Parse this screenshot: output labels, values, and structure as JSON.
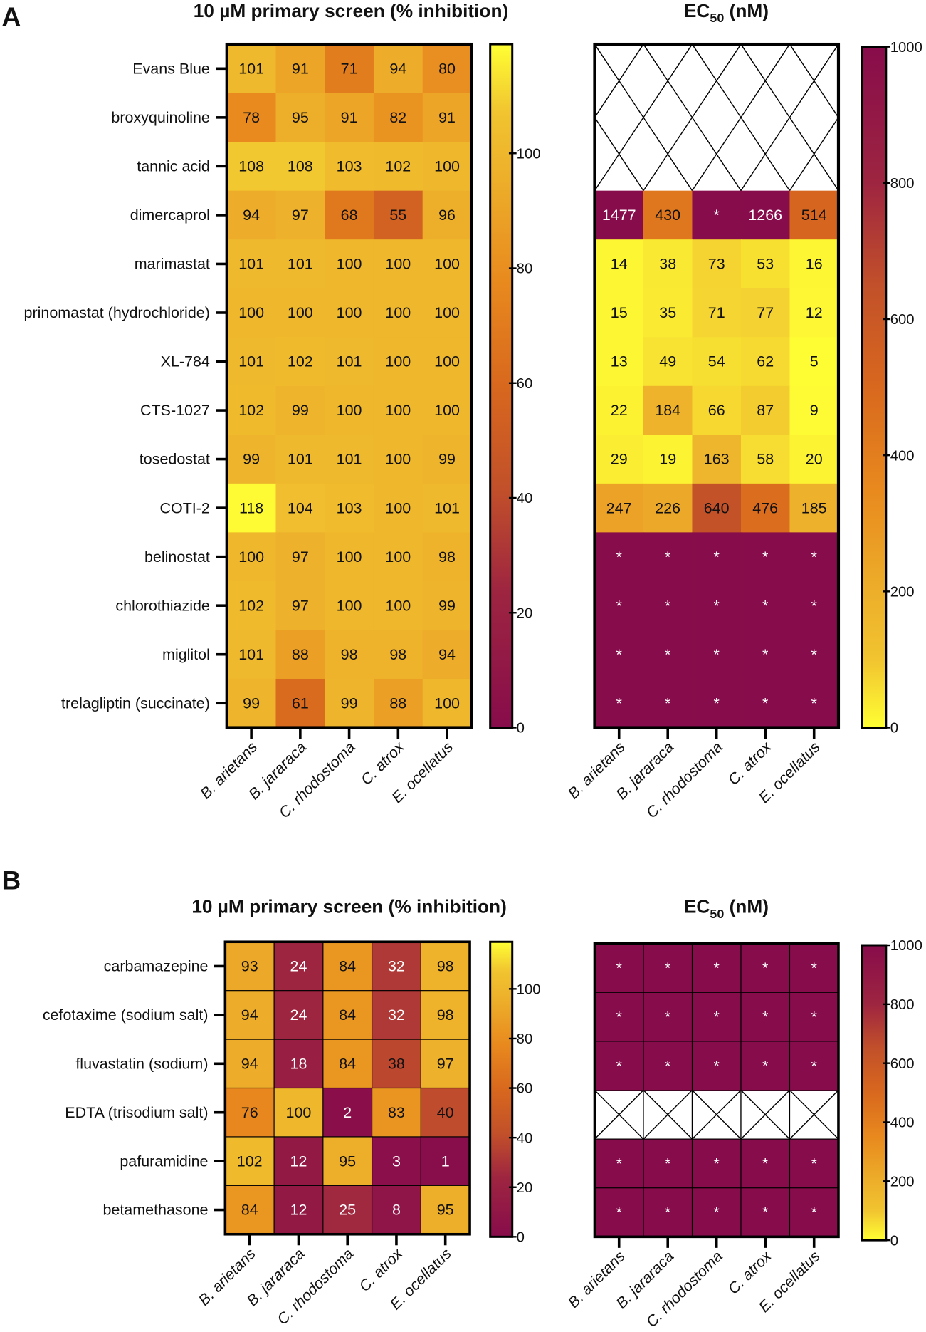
{
  "colors": {
    "low": "#870C4B",
    "high": "#FFFF33",
    "hatch_bg": "#FFFFFF",
    "frame": "#000000"
  },
  "chart_data": [
    {
      "panel": "A",
      "type": "heatmap",
      "title": "10 µM primary screen (% inhibition)",
      "rows": [
        "Evans Blue",
        "broxyquinoline",
        "tannic acid",
        "dimercaprol",
        "marimastat",
        "prinomastat (hydrochloride)",
        "XL-784",
        "CTS-1027",
        "tosedostat",
        "COTI-2",
        "belinostat",
        "chlorothiazide",
        "miglitol",
        "trelagliptin (succinate)"
      ],
      "columns": [
        "B. arietans",
        "B. jararaca",
        "C. rhodostoma",
        "C. atrox",
        "E. ocellatus"
      ],
      "values": [
        [
          101,
          91,
          71,
          94,
          80
        ],
        [
          78,
          95,
          91,
          82,
          91
        ],
        [
          108,
          108,
          103,
          102,
          100
        ],
        [
          94,
          97,
          68,
          55,
          96
        ],
        [
          101,
          101,
          100,
          100,
          100
        ],
        [
          100,
          100,
          100,
          100,
          100
        ],
        [
          101,
          102,
          101,
          100,
          100
        ],
        [
          102,
          99,
          100,
          100,
          100
        ],
        [
          99,
          101,
          101,
          100,
          99
        ],
        [
          118,
          104,
          103,
          100,
          101
        ],
        [
          100,
          97,
          100,
          100,
          98
        ],
        [
          102,
          97,
          100,
          100,
          99
        ],
        [
          101,
          88,
          98,
          98,
          94
        ],
        [
          99,
          61,
          99,
          88,
          100
        ]
      ],
      "colorbar": {
        "range": [
          0,
          119
        ],
        "ticks": [
          0,
          20,
          40,
          60,
          80,
          100
        ],
        "direction": "high-is-yellow"
      }
    },
    {
      "panel": "A",
      "type": "heatmap",
      "title_main": "EC",
      "title_sub": "50",
      "title_unit": " (nM)",
      "rows": [
        "Evans Blue",
        "broxyquinoline",
        "tannic acid",
        "dimercaprol",
        "marimastat",
        "prinomastat (hydrochloride)",
        "XL-784",
        "CTS-1027",
        "tosedostat",
        "COTI-2",
        "belinostat",
        "chlorothiazide",
        "miglitol",
        "trelagliptin (succinate)"
      ],
      "columns": [
        "B. arietans",
        "B. jararaca",
        "C. rhodostoma",
        "C. atrox",
        "E. ocellatus"
      ],
      "values": [
        [
          null,
          null,
          null,
          null,
          null
        ],
        [
          null,
          null,
          null,
          null,
          null
        ],
        [
          null,
          null,
          null,
          null,
          null
        ],
        [
          "1477",
          "430",
          "*",
          "1266",
          "514"
        ],
        [
          "14",
          "38",
          "73",
          "53",
          "16"
        ],
        [
          "15",
          "35",
          "71",
          "77",
          "12"
        ],
        [
          "13",
          "49",
          "54",
          "62",
          "5"
        ],
        [
          "22",
          "184",
          "66",
          "87",
          "9"
        ],
        [
          "29",
          "19",
          "163",
          "58",
          "20"
        ],
        [
          "247",
          "226",
          "640",
          "476",
          "185"
        ],
        [
          "*",
          "*",
          "*",
          "*",
          "*"
        ],
        [
          "*",
          "*",
          "*",
          "*",
          "*"
        ],
        [
          "*",
          "*",
          "*",
          "*",
          "*"
        ],
        [
          "*",
          "*",
          "*",
          "*",
          "*"
        ]
      ],
      "colorbar": {
        "range": [
          0,
          1000
        ],
        "ticks": [
          0,
          200,
          400,
          600,
          800,
          1000
        ],
        "direction": "high-is-magenta"
      }
    },
    {
      "panel": "B",
      "type": "heatmap",
      "title": "10 µM primary screen (% inhibition)",
      "rows": [
        "carbamazepine",
        "cefotaxime (sodium salt)",
        "fluvastatin (sodium)",
        "EDTA (trisodium salt)",
        "pafuramidine",
        "betamethasone"
      ],
      "columns": [
        "B. arietans",
        "B. jararaca",
        "C. rhodostoma",
        "C. atrox",
        "E. ocellatus"
      ],
      "values": [
        [
          93,
          24,
          84,
          32,
          98
        ],
        [
          94,
          24,
          84,
          32,
          98
        ],
        [
          94,
          18,
          84,
          38,
          97
        ],
        [
          76,
          100,
          2,
          83,
          40
        ],
        [
          102,
          12,
          95,
          3,
          1
        ],
        [
          84,
          12,
          25,
          8,
          95
        ]
      ],
      "colorbar": {
        "range": [
          0,
          119
        ],
        "ticks": [
          0,
          20,
          40,
          60,
          80,
          100
        ],
        "direction": "high-is-yellow"
      }
    },
    {
      "panel": "B",
      "type": "heatmap",
      "title_main": "EC",
      "title_sub": "50",
      "title_unit": " (nM)",
      "rows": [
        "carbamazepine",
        "cefotaxime (sodium salt)",
        "fluvastatin (sodium)",
        "EDTA (trisodium salt)",
        "pafuramidine",
        "betamethasone"
      ],
      "columns": [
        "B. arietans",
        "B. jararaca",
        "C. rhodostoma",
        "C. atrox",
        "E. ocellatus"
      ],
      "values": [
        [
          "*",
          "*",
          "*",
          "*",
          "*"
        ],
        [
          "*",
          "*",
          "*",
          "*",
          "*"
        ],
        [
          "*",
          "*",
          "*",
          "*",
          "*"
        ],
        [
          null,
          null,
          null,
          null,
          null
        ],
        [
          "*",
          "*",
          "*",
          "*",
          "*"
        ],
        [
          "*",
          "*",
          "*",
          "*",
          "*"
        ]
      ],
      "colorbar": {
        "range": [
          0,
          1000
        ],
        "ticks": [
          0,
          200,
          400,
          600,
          800,
          1000
        ],
        "direction": "high-is-magenta"
      }
    }
  ]
}
